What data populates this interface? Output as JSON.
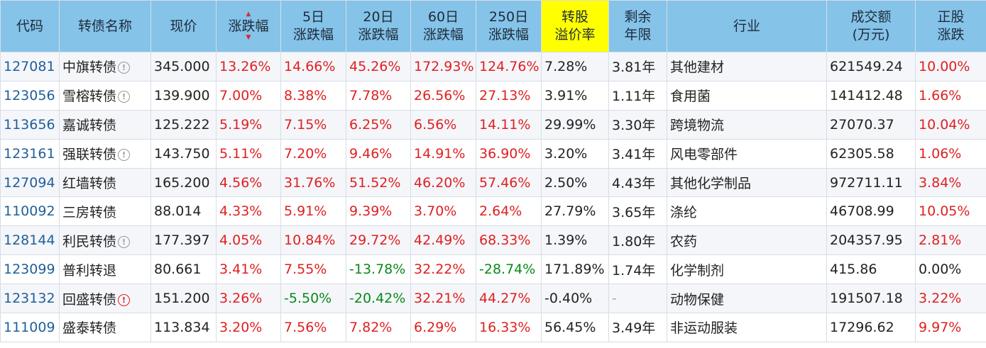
{
  "table": {
    "headers": {
      "code": "代码",
      "name": "转债名称",
      "price": "现价",
      "change": "涨跌幅",
      "change_5d_1": "5日",
      "change_5d_2": "涨跌幅",
      "change_20d_1": "20日",
      "change_20d_2": "涨跌幅",
      "change_60d_1": "60日",
      "change_60d_2": "涨跌幅",
      "change_250d_1": "250日",
      "change_250d_2": "涨跌幅",
      "premium_1": "转股",
      "premium_2": "溢价率",
      "remaining_1": "剩余",
      "remaining_2": "年限",
      "industry": "行业",
      "turnover_1": "成交额",
      "turnover_2": "(万元)",
      "stock_change_1": "正股",
      "stock_change_2": "涨跌"
    },
    "rows": [
      {
        "code": "127081",
        "name": "中旗转债",
        "info": "!",
        "info_color": "grey",
        "price": "345.000",
        "change": "13.26%",
        "c5": "14.66%",
        "c20": "45.26%",
        "c60": "172.93%",
        "c250": "124.76%",
        "premium": "7.28%",
        "remaining": "3.81年",
        "industry": "其他建材",
        "turnover": "621549.24",
        "stock": "10.00%"
      },
      {
        "code": "123056",
        "name": "雪榕转债",
        "info": "!",
        "info_color": "grey",
        "price": "139.900",
        "change": "7.00%",
        "c5": "8.38%",
        "c20": "7.78%",
        "c60": "26.56%",
        "c250": "27.13%",
        "premium": "3.91%",
        "remaining": "1.11年",
        "industry": "食用菌",
        "turnover": "141412.48",
        "stock": "1.66%"
      },
      {
        "code": "113656",
        "name": "嘉诚转债",
        "info": "",
        "info_color": "",
        "price": "125.222",
        "change": "5.19%",
        "c5": "7.15%",
        "c20": "6.25%",
        "c60": "6.56%",
        "c250": "14.11%",
        "premium": "29.99%",
        "remaining": "3.30年",
        "industry": "跨境物流",
        "turnover": "27070.37",
        "stock": "10.04%"
      },
      {
        "code": "123161",
        "name": "强联转债",
        "info": "!",
        "info_color": "grey",
        "price": "143.750",
        "change": "5.11%",
        "c5": "7.20%",
        "c20": "9.46%",
        "c60": "14.91%",
        "c250": "36.90%",
        "premium": "3.20%",
        "remaining": "3.41年",
        "industry": "风电零部件",
        "turnover": "62305.58",
        "stock": "1.06%"
      },
      {
        "code": "127094",
        "name": "红墙转债",
        "info": "",
        "info_color": "",
        "price": "165.200",
        "change": "4.56%",
        "c5": "31.76%",
        "c20": "51.52%",
        "c60": "46.20%",
        "c250": "57.46%",
        "premium": "2.50%",
        "remaining": "4.43年",
        "industry": "其他化学制品",
        "turnover": "972711.11",
        "stock": "3.84%"
      },
      {
        "code": "110092",
        "name": "三房转债",
        "info": "",
        "info_color": "",
        "price": "88.014",
        "change": "4.33%",
        "c5": "5.91%",
        "c20": "9.39%",
        "c60": "3.70%",
        "c250": "2.64%",
        "premium": "27.79%",
        "remaining": "3.65年",
        "industry": "涤纶",
        "turnover": "46708.99",
        "stock": "10.05%"
      },
      {
        "code": "128144",
        "name": "利民转债",
        "info": "!",
        "info_color": "grey",
        "price": "177.397",
        "change": "4.05%",
        "c5": "10.84%",
        "c20": "29.72%",
        "c60": "42.49%",
        "c250": "68.33%",
        "premium": "1.39%",
        "remaining": "1.80年",
        "industry": "农药",
        "turnover": "204357.95",
        "stock": "2.81%"
      },
      {
        "code": "123099",
        "name": "普利转退",
        "info": "",
        "info_color": "",
        "price": "80.661",
        "change": "3.41%",
        "c5": "7.55%",
        "c20": "-13.78%",
        "c60": "32.22%",
        "c250": "-28.74%",
        "premium": "171.89%",
        "remaining": "1.74年",
        "industry": "化学制剂",
        "turnover": "415.86",
        "stock": "0.00%"
      },
      {
        "code": "123132",
        "name": "回盛转债",
        "info": "!",
        "info_color": "red",
        "price": "151.200",
        "change": "3.26%",
        "c5": "-5.50%",
        "c20": "-20.42%",
        "c60": "32.21%",
        "c250": "44.27%",
        "premium": "-0.40%",
        "remaining": "-",
        "industry": "动物保健",
        "turnover": "191507.18",
        "stock": "3.22%"
      },
      {
        "code": "111009",
        "name": "盛泰转债",
        "info": "",
        "info_color": "",
        "price": "113.834",
        "change": "3.20%",
        "c5": "7.56%",
        "c20": "7.82%",
        "c60": "6.29%",
        "c250": "16.33%",
        "premium": "56.45%",
        "remaining": "3.49年",
        "industry": "非运动服装",
        "turnover": "17296.62",
        "stock": "9.97%"
      }
    ]
  },
  "icons": {
    "sort_up": "sort-up-icon",
    "sort_down": "sort-down-icon",
    "info": "info-circle-icon"
  },
  "colors": {
    "header_bg": "#85c3e9",
    "highlight": "#ffff00",
    "up": "#e02020",
    "down": "#0a8a1a",
    "code": "#1f5f99"
  }
}
